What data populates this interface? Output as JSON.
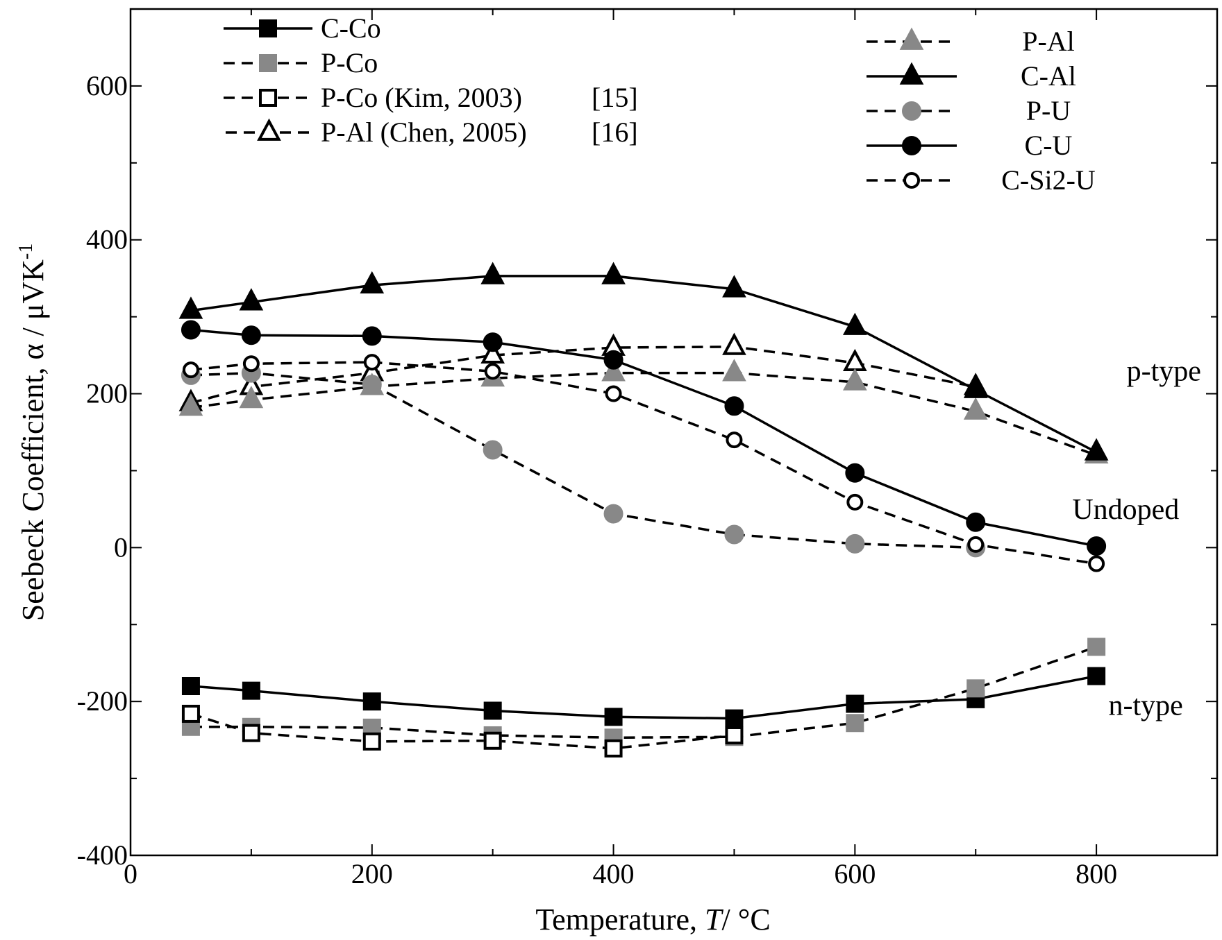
{
  "chart_data": {
    "type": "line",
    "title": "",
    "xlabel": "Temperature, T/ °C",
    "xlabel_parts": {
      "pre": "Temperature, ",
      "italic": "T",
      "post": "/ °C"
    },
    "ylabel": "Seebeck Coefficient, α / μVK⁻¹",
    "ylabel_parts": {
      "base": "Seebeck Coefficient, α / μVK",
      "sup": "-1"
    },
    "xlim": [
      0,
      900
    ],
    "ylim": [
      -400,
      700
    ],
    "xticks": [
      0,
      200,
      400,
      600,
      800
    ],
    "yticks": [
      -400,
      -200,
      0,
      200,
      400,
      600
    ],
    "annotations": [
      {
        "text": "p-type",
        "x": 825,
        "y": 230
      },
      {
        "text": "Undoped",
        "x": 780,
        "y": 50
      },
      {
        "text": "n-type",
        "x": 810,
        "y": -205
      }
    ],
    "series": [
      {
        "name": "C-Co",
        "marker": "square",
        "fill": "#000000",
        "dashed": false,
        "x": [
          50,
          100,
          200,
          300,
          400,
          500,
          600,
          700,
          800
        ],
        "values": [
          -180,
          -186,
          -200,
          -212,
          -220,
          -222,
          -203,
          -197,
          -167
        ]
      },
      {
        "name": "P-Co",
        "marker": "square",
        "fill": "#888888",
        "dashed": true,
        "x": [
          50,
          100,
          200,
          300,
          400,
          500,
          600,
          700,
          800
        ],
        "values": [
          -233,
          -233,
          -234,
          -244,
          -247,
          -246,
          -228,
          -183,
          -129
        ]
      },
      {
        "name": "P-Co  (Kim, 2003)",
        "ref": "[15]",
        "marker": "square",
        "fill": "#ffffff",
        "dashed": true,
        "x": [
          50,
          100,
          200,
          300,
          400,
          500
        ],
        "values": [
          -216,
          -241,
          -252,
          -251,
          -261,
          -244
        ]
      },
      {
        "name": "P-Al (Chen, 2005)",
        "ref": "[16]",
        "marker": "triangle",
        "fill": "#ffffff",
        "dashed": true,
        "x": [
          50,
          100,
          200,
          300,
          400,
          500,
          600,
          700
        ],
        "values": [
          188,
          209,
          227,
          250,
          260,
          261,
          240,
          209
        ]
      },
      {
        "name": "P-Al",
        "marker": "triangle",
        "fill": "#888888",
        "dashed": true,
        "x": [
          50,
          100,
          200,
          300,
          400,
          500,
          600,
          700,
          800
        ],
        "values": [
          182,
          192,
          209,
          220,
          227,
          227,
          215,
          177,
          120
        ]
      },
      {
        "name": "C-Al",
        "marker": "triangle",
        "fill": "#000000",
        "dashed": false,
        "x": [
          50,
          100,
          200,
          300,
          400,
          500,
          600,
          700,
          800
        ],
        "values": [
          308,
          319,
          341,
          353,
          353,
          336,
          287,
          205,
          124
        ]
      },
      {
        "name": "P-U",
        "marker": "circle",
        "fill": "#888888",
        "dashed": true,
        "x": [
          50,
          100,
          200,
          300,
          400,
          500,
          600,
          700
        ],
        "values": [
          224,
          227,
          212,
          127,
          44,
          17,
          5,
          0
        ]
      },
      {
        "name": "C-U",
        "marker": "circle",
        "fill": "#000000",
        "dashed": false,
        "x": [
          50,
          100,
          200,
          300,
          400,
          500,
          600,
          700,
          800
        ],
        "values": [
          283,
          276,
          275,
          267,
          244,
          184,
          97,
          33,
          2
        ]
      },
      {
        "name": "C-Si2-U",
        "marker": "circle",
        "fill": "#ffffff",
        "dashed": true,
        "x": [
          50,
          100,
          200,
          300,
          400,
          500,
          600,
          700,
          800
        ],
        "values": [
          231,
          239,
          241,
          229,
          200,
          140,
          59,
          4,
          -21
        ]
      }
    ],
    "legend": {
      "left": [
        {
          "name": "C-Co",
          "label": "C-Co"
        },
        {
          "name": "P-Co",
          "label": "P-Co"
        },
        {
          "name": "P-Co  (Kim, 2003)",
          "label": "P-Co  (Kim, 2003)",
          "ref": "[15]"
        },
        {
          "name": "P-Al (Chen, 2005)",
          "label": "P-Al (Chen, 2005)",
          "ref": "[16]"
        }
      ],
      "right": [
        {
          "name": "P-Al",
          "label": "P-Al"
        },
        {
          "name": "C-Al",
          "label": "C-Al"
        },
        {
          "name": "P-U",
          "label": "P-U"
        },
        {
          "name": "C-U",
          "label": "C-U"
        },
        {
          "name": "C-Si2-U",
          "label": "C-Si2-U"
        }
      ]
    }
  }
}
